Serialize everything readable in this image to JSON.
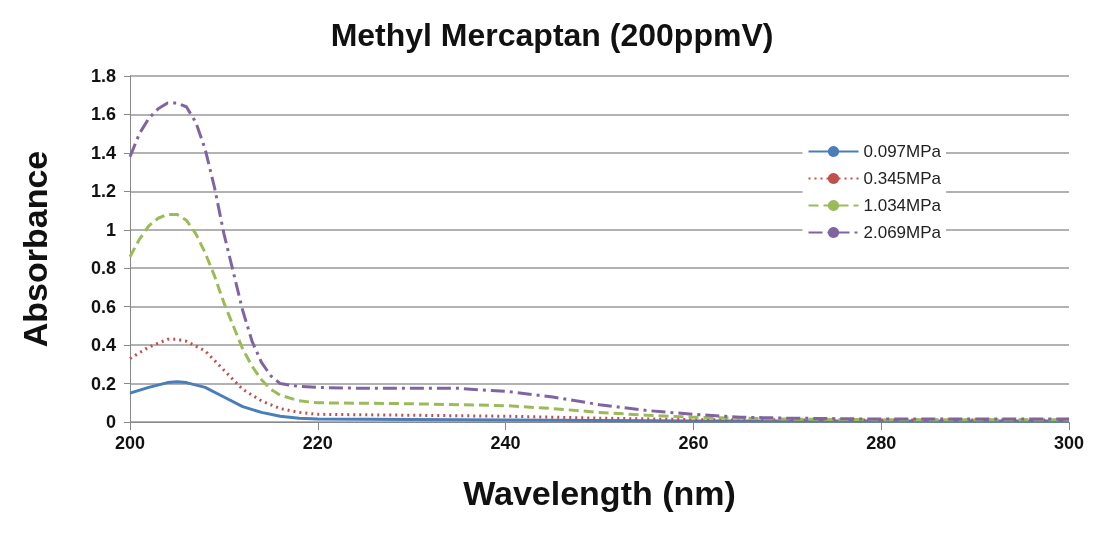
{
  "chart_data": {
    "type": "line",
    "title": "Methyl Mercaptan (200ppmV)",
    "xlabel": "Wavelength (nm)",
    "ylabel": "Absorbance",
    "xlim": [
      200,
      300
    ],
    "xticks": [
      200,
      220,
      240,
      260,
      280,
      300
    ],
    "ylim": [
      0,
      1.8
    ],
    "yticks": [
      0,
      0.2,
      0.4,
      0.6,
      0.8,
      1,
      1.2,
      1.4,
      1.6,
      1.8
    ],
    "grid": "y",
    "legend": "top right",
    "marker": "none",
    "series": [
      {
        "name": "0.097MPa",
        "color": "#4a7ebb",
        "line_style": "solid",
        "x": [
          200,
          202,
          204,
          205,
          206,
          208,
          210,
          212,
          214,
          216,
          218,
          220,
          240,
          260,
          300
        ],
        "values": [
          0.15,
          0.18,
          0.205,
          0.21,
          0.205,
          0.18,
          0.13,
          0.08,
          0.05,
          0.03,
          0.02,
          0.015,
          0.01,
          0.005,
          0.005
        ]
      },
      {
        "name": "0.345MPa",
        "color": "#c0504d",
        "line_style": "dotted",
        "x": [
          200,
          202,
          204,
          205,
          206,
          208,
          210,
          212,
          214,
          216,
          218,
          220,
          230,
          240,
          250,
          260,
          280,
          300
        ],
        "values": [
          0.33,
          0.39,
          0.43,
          0.43,
          0.42,
          0.37,
          0.27,
          0.17,
          0.11,
          0.07,
          0.05,
          0.04,
          0.035,
          0.03,
          0.02,
          0.012,
          0.01,
          0.01
        ]
      },
      {
        "name": "1.034MPa",
        "color": "#9bbb59",
        "line_style": "dashed",
        "x": [
          200,
          201,
          202,
          203,
          204,
          205,
          206,
          207,
          208,
          209,
          210,
          211,
          212,
          213,
          214,
          215,
          216,
          218,
          220,
          230,
          240,
          245,
          250,
          255,
          260,
          270,
          280,
          300
        ],
        "values": [
          0.86,
          0.95,
          1.02,
          1.06,
          1.08,
          1.08,
          1.05,
          0.98,
          0.88,
          0.76,
          0.62,
          0.5,
          0.38,
          0.29,
          0.22,
          0.17,
          0.14,
          0.11,
          0.1,
          0.095,
          0.085,
          0.07,
          0.05,
          0.035,
          0.025,
          0.015,
          0.012,
          0.012
        ]
      },
      {
        "name": "2.069MPa",
        "color": "#8064a2",
        "line_style": "dashdot",
        "x": [
          200,
          201,
          202,
          203,
          204,
          205,
          206,
          207,
          208,
          209,
          210,
          211,
          212,
          213,
          214,
          215,
          216,
          218,
          220,
          225,
          230,
          235,
          238,
          240,
          245,
          250,
          255,
          260,
          265,
          270,
          280,
          290,
          300
        ],
        "values": [
          1.38,
          1.5,
          1.58,
          1.63,
          1.66,
          1.66,
          1.64,
          1.56,
          1.42,
          1.22,
          0.98,
          0.78,
          0.58,
          0.42,
          0.31,
          0.24,
          0.2,
          0.185,
          0.18,
          0.175,
          0.175,
          0.175,
          0.165,
          0.16,
          0.13,
          0.09,
          0.06,
          0.04,
          0.025,
          0.02,
          0.015,
          0.015,
          0.015
        ]
      }
    ]
  }
}
